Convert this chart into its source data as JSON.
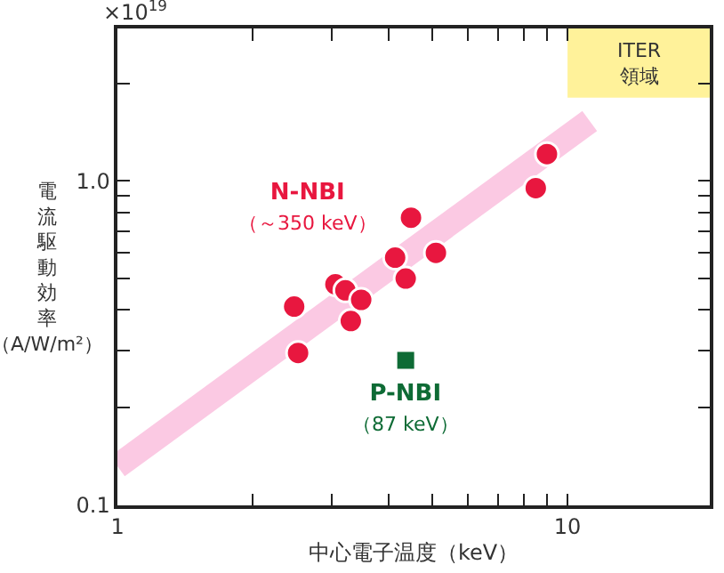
{
  "chart_data": {
    "type": "scatter",
    "xlabel": "中心電子温度（keV）",
    "ylabel": "電流駆動効率（A/W/m²）",
    "annotations": [
      "×10$^{19}$"
    ],
    "bands": [
      {
        "axis": "x",
        "from": 10,
        "to": 20.7,
        "label": "ITER\n領域",
        "color": "#fff29a"
      }
    ],
    "log": "xy",
    "grid": false,
    "legend": false,
    "xlim": [
      1,
      20.7
    ],
    "ylim": [
      0.1,
      2.95
    ],
    "xticks": [
      1,
      {
        "value": 2,
        "label": null
      },
      {
        "value": 3,
        "label": null
      },
      {
        "value": 4,
        "label": null
      },
      {
        "value": 5,
        "label": null
      },
      {
        "value": 6,
        "label": null
      },
      {
        "value": 7,
        "label": null
      },
      {
        "value": 8,
        "label": null
      },
      {
        "value": 9,
        "label": null
      },
      10
    ],
    "yticks": [
      0.1,
      {
        "value": 0.2,
        "label": null
      },
      {
        "value": 0.3,
        "label": null
      },
      {
        "value": 0.4,
        "label": null
      },
      {
        "value": 0.5,
        "label": null
      },
      {
        "value": 0.6,
        "label": null
      },
      {
        "value": 0.7,
        "label": null
      },
      {
        "value": 0.8,
        "label": null
      },
      {
        "value": 0.9,
        "label": null
      },
      {
        "value": 1,
        "label": "1.0"
      },
      {
        "value": 2,
        "label": null
      }
    ],
    "series": [
      {
        "type": "line",
        "color": "#fbc9e3",
        "x": [
          1,
          11.2
        ],
        "values": [
          0.132,
          1.53
        ],
        "marker": "none"
      },
      {
        "name": "N-NBI\n（～350 keV）",
        "color": "#e8173f",
        "marker": "circle",
        "x": [
          9.0,
          8.5,
          4.49,
          5.1,
          4.14,
          4.37,
          2.47,
          2.52,
          3.05,
          3.21,
          3.48,
          3.3
        ],
        "values": [
          1.21,
          0.95,
          0.77,
          0.6,
          0.58,
          0.5,
          0.41,
          0.295,
          0.48,
          0.46,
          0.43,
          0.37
        ]
      },
      {
        "name": "P-NBI\n（87 keV）",
        "color": "#0e6b35",
        "marker": "square",
        "x": [
          4.37
        ],
        "values": [
          0.28
        ]
      }
    ]
  }
}
